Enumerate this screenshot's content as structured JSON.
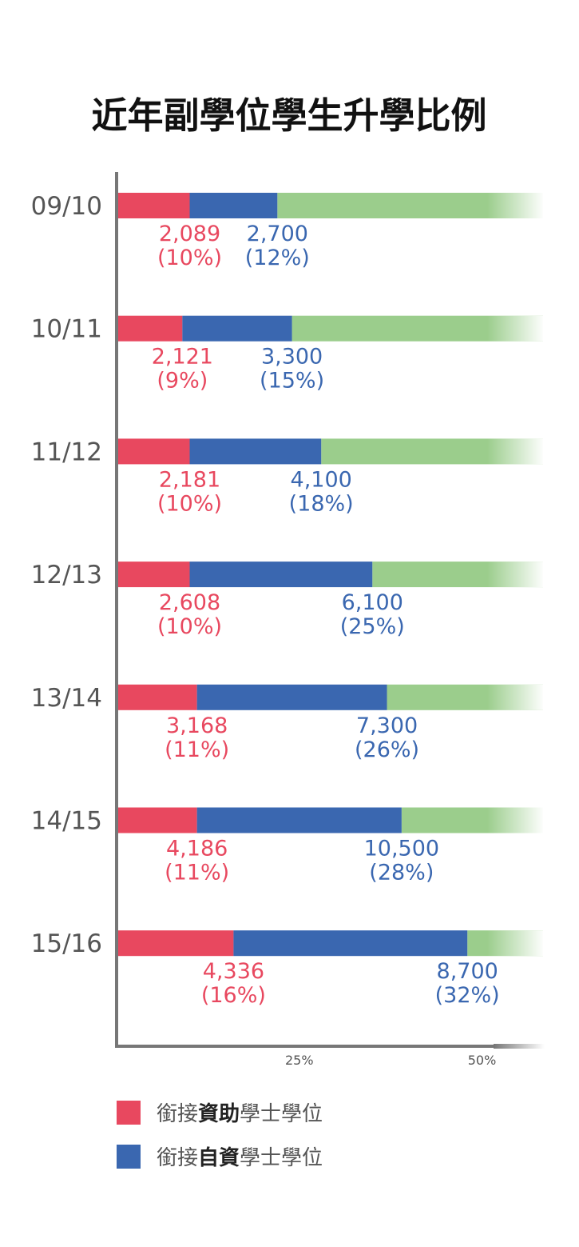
{
  "title": "近年副學位學生升學比例",
  "colors": {
    "subsidized": "#e8485f",
    "selffinanced": "#3a67b0",
    "remainder": "#9bcd8c",
    "axis": "#777777",
    "text": "#555555"
  },
  "legend": [
    {
      "color_key": "subsidized",
      "prefix": "銜接",
      "bold": "資助",
      "suffix": "學士學位"
    },
    {
      "color_key": "selffinanced",
      "prefix": "銜接",
      "bold": "自資",
      "suffix": "學士學位"
    }
  ],
  "chart_data": {
    "type": "bar",
    "stacked": true,
    "orientation": "horizontal",
    "title": "近年副學位學生升學比例",
    "categories": [
      "09/10",
      "10/11",
      "11/12",
      "12/13",
      "13/14",
      "14/15",
      "15/16"
    ],
    "series": [
      {
        "name": "銜接資助學士學位",
        "color_key": "subsidized",
        "values": [
          10,
          9,
          10,
          10,
          11,
          11,
          16
        ],
        "labels": [
          "2,089",
          "2,121",
          "2,181",
          "2,608",
          "3,168",
          "4,186",
          "4,336"
        ],
        "pct_labels": [
          "(10%)",
          "(9%)",
          "(10%)",
          "(10%)",
          "(11%)",
          "(11%)",
          "(16%)"
        ]
      },
      {
        "name": "銜接自資學士學位",
        "color_key": "selffinanced",
        "values": [
          12,
          15,
          18,
          25,
          26,
          28,
          32
        ],
        "labels": [
          "2,700",
          "3,300",
          "4,100",
          "6,100",
          "7,300",
          "10,500",
          "8,700"
        ],
        "pct_labels": [
          "(12%)",
          "(15%)",
          "(18%)",
          "(25%)",
          "(26%)",
          "(28%)",
          "(32%)"
        ]
      }
    ],
    "xticks": [
      25,
      50
    ],
    "xtick_labels": [
      "25%",
      "50%"
    ],
    "xlim": [
      0,
      58.5
    ],
    "unit": "%"
  }
}
